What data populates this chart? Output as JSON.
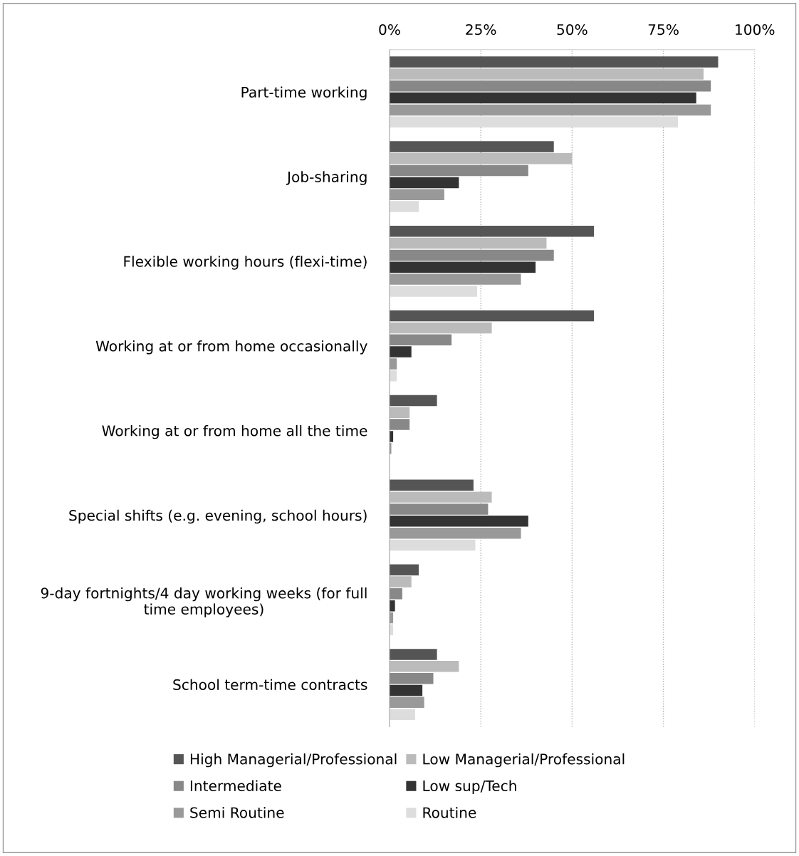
{
  "chart_data": {
    "type": "bar",
    "orientation": "horizontal",
    "categories": [
      "Part-time working",
      "Job-sharing",
      "Flexible working hours (flexi-time)",
      "Working at or from home occasionally",
      "Working at or from home all the time",
      "Special shifts (e.g. evening, school hours)",
      "9-day fortnights/4 day working weeks (for full\ntime employees)",
      "School term-time contracts"
    ],
    "series": [
      {
        "name": "High Managerial/Professional",
        "color": "#555555",
        "values": [
          90,
          45,
          56,
          56,
          13,
          23,
          8,
          13
        ]
      },
      {
        "name": "Low Managerial/Professional",
        "color": "#bbbbbb",
        "values": [
          86,
          50,
          43,
          28,
          5.5,
          28,
          6,
          19
        ]
      },
      {
        "name": "Intermediate",
        "color": "#888888",
        "values": [
          88,
          38,
          45,
          17,
          5.5,
          27,
          3.5,
          12
        ]
      },
      {
        "name": "Low sup/Tech",
        "color": "#333333",
        "values": [
          84,
          19,
          40,
          6,
          1,
          38,
          1.5,
          9
        ]
      },
      {
        "name": "Semi Routine",
        "color": "#999999",
        "values": [
          88,
          15,
          36,
          2,
          0.5,
          36,
          1,
          9.5
        ]
      },
      {
        "name": "Routine",
        "color": "#dddddd",
        "values": [
          79,
          8,
          24,
          2,
          null,
          23.5,
          1,
          7
        ]
      }
    ],
    "xlim": [
      0,
      100
    ],
    "xticks": [
      {
        "value": 0,
        "label": "0%"
      },
      {
        "value": 25,
        "label": "25%"
      },
      {
        "value": 50,
        "label": "50%"
      },
      {
        "value": 75,
        "label": "75%"
      },
      {
        "value": 100,
        "label": "100%"
      }
    ],
    "grid": "x",
    "legend": "bottom"
  }
}
